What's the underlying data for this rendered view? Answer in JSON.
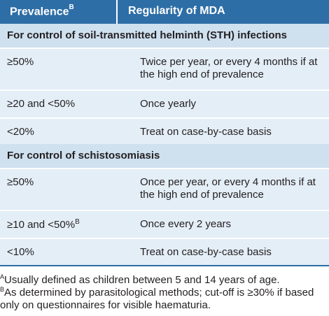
{
  "header": {
    "col1": "Prevalence",
    "col1_sup": "B",
    "col2": "Regularity of MDA"
  },
  "sections": [
    {
      "title": "For control of soil-transmitted helminth (STH) infections",
      "rows": [
        {
          "prevalence": "≥50%",
          "regularity": "Twice per year, or every 4 months if at the high end of prevalence"
        },
        {
          "prevalence": "≥20 and <50%",
          "regularity": "Once yearly"
        },
        {
          "prevalence": "<20%",
          "regularity": "Treat on case-by-case basis"
        }
      ]
    },
    {
      "title": "For control of schistosomiasis",
      "rows": [
        {
          "prevalence": "≥50%",
          "regularity": "Once per year, or every 4 months if at the high end of prevalence"
        },
        {
          "prevalence": "≥10 and <50%",
          "prevalence_sup": "B",
          "regularity": "Once every 2 years"
        },
        {
          "prevalence": "<10%",
          "regularity": "Treat on case-by-case basis"
        }
      ]
    }
  ],
  "footnotes": [
    {
      "mark": "A",
      "text": "Usually defined as children between 5 and 14 years of age."
    },
    {
      "mark": "B",
      "text": "As determined by parasitological methods; cut-off is ≥30% if based only on questionnaires for visible haematuria."
    }
  ],
  "colors": {
    "header_bg": "#2e6ea6",
    "section_bg": "#cfe0ef",
    "row_bg": "#e4eef7"
  }
}
